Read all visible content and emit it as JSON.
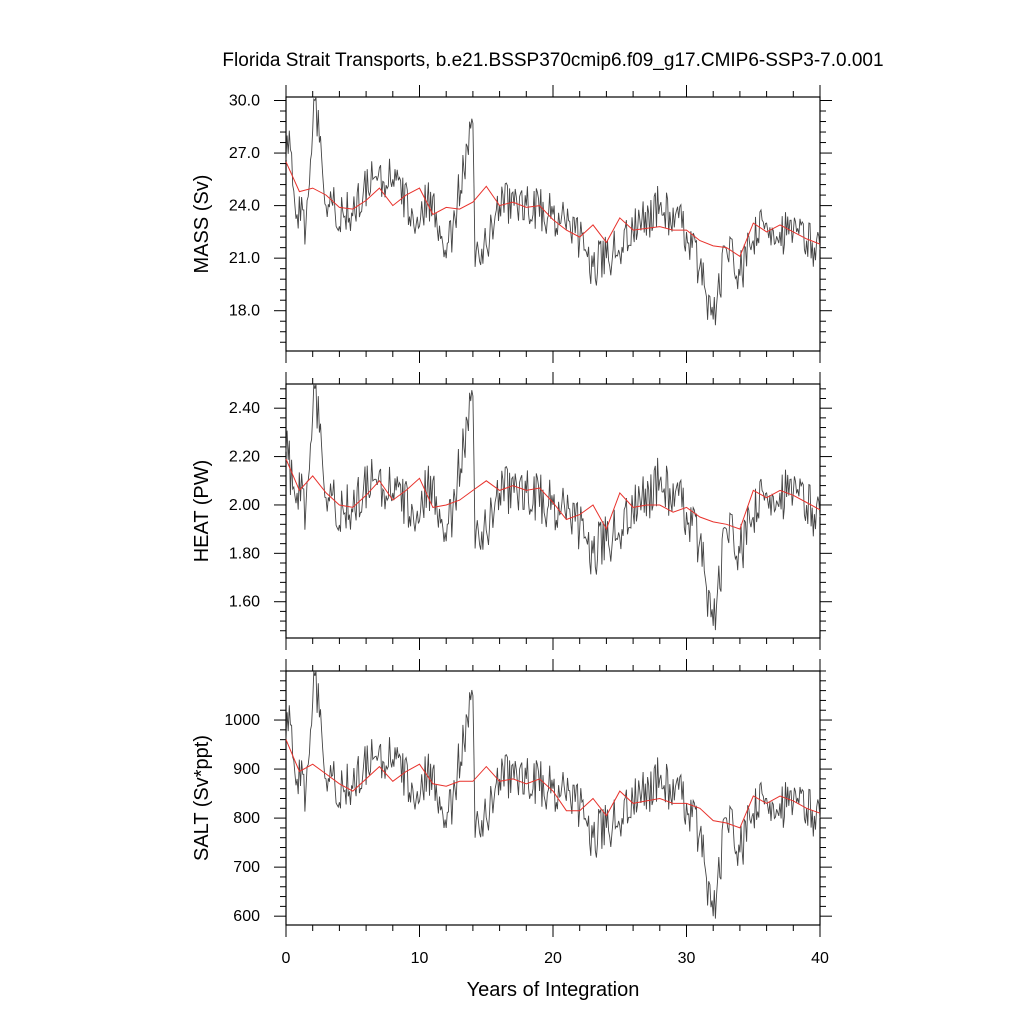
{
  "chart_data": [
    {
      "type": "line",
      "title": "Florida Strait Transports, b.e21.BSSP370cmip6.f09_g17.CMIP6-SSP3-7.0.001",
      "xlabel": "Years of Integration",
      "ylabel": "MASS (Sv)",
      "xlim": [
        0,
        40
      ],
      "ylim": [
        15.7,
        30.2
      ],
      "yticks": [
        "30.0",
        "27.0",
        "24.0",
        "21.0",
        "18.0"
      ],
      "ytick_values": [
        30,
        27,
        24,
        21,
        18
      ],
      "xticks": [
        0,
        10,
        20,
        30,
        40
      ],
      "grid": false,
      "series": [
        {
          "role": "monthly",
          "color": "#444444",
          "x_start": 0,
          "x_step": 0.0833333,
          "anchors": [
            [
              0,
              26.6
            ],
            [
              0.3,
              27.2
            ],
            [
              0.8,
              23.5
            ],
            [
              1.5,
              23
            ],
            [
              2.2,
              30
            ],
            [
              3,
              24
            ],
            [
              3.5,
              24
            ],
            [
              5,
              23.4
            ],
            [
              6.5,
              25.5
            ],
            [
              8,
              25.5
            ],
            [
              9.5,
              23.5
            ],
            [
              11,
              24.5
            ],
            [
              12,
              21
            ],
            [
              14,
              28.7
            ],
            [
              14.2,
              20.5
            ],
            [
              16,
              24
            ],
            [
              18,
              24
            ],
            [
              20,
              23.5
            ],
            [
              22,
              22
            ],
            [
              23,
              20.5
            ],
            [
              24,
              21
            ],
            [
              26,
              22.5
            ],
            [
              28,
              24
            ],
            [
              30,
              22.5
            ],
            [
              31,
              20.5
            ],
            [
              32,
              17.5
            ],
            [
              33,
              21.5
            ],
            [
              34,
              20
            ],
            [
              35,
              22
            ],
            [
              36,
              23
            ],
            [
              37,
              22.5
            ],
            [
              38,
              22.5
            ],
            [
              39,
              22
            ],
            [
              40,
              21.5
            ]
          ],
          "amplitude": 1.3
        },
        {
          "role": "annual_mean",
          "color": "#e8322c",
          "x": [
            0,
            1,
            2,
            3,
            4,
            5,
            6,
            7,
            8,
            9,
            10,
            11,
            12,
            13,
            14,
            15,
            16,
            17,
            18,
            19,
            20,
            21,
            22,
            23,
            24,
            25,
            26,
            27,
            28,
            29,
            30,
            31,
            32,
            33,
            34,
            35,
            36,
            37,
            38,
            39,
            40
          ],
          "values": [
            26.5,
            24.8,
            25.0,
            24.6,
            23.9,
            23.8,
            24.3,
            25.0,
            24.0,
            24.6,
            25.0,
            23.5,
            23.9,
            23.8,
            24.2,
            25.1,
            24.0,
            24.2,
            23.9,
            24.0,
            23.2,
            22.6,
            22.2,
            22.9,
            21.9,
            23.3,
            22.6,
            22.7,
            22.8,
            22.6,
            22.6,
            22.0,
            21.7,
            21.6,
            21.1,
            23.0,
            22.5,
            22.9,
            22.5,
            22.1,
            21.8
          ]
        }
      ]
    },
    {
      "type": "line",
      "xlabel": "Years of Integration",
      "ylabel": "HEAT (PW)",
      "xlim": [
        0,
        40
      ],
      "ylim": [
        1.45,
        2.5
      ],
      "yticks": [
        "2.40",
        "2.20",
        "2.00",
        "1.80",
        "1.60"
      ],
      "ytick_values": [
        2.4,
        2.2,
        2.0,
        1.8,
        1.6
      ],
      "xticks": [
        0,
        10,
        20,
        30,
        40
      ],
      "grid": false,
      "series": [
        {
          "role": "monthly",
          "color": "#444444",
          "x_start": 0,
          "x_step": 0.0833333,
          "anchors": [
            [
              0,
              2.22
            ],
            [
              0.8,
              2.05
            ],
            [
              1.5,
              2.0
            ],
            [
              2.2,
              2.48
            ],
            [
              3,
              2.03
            ],
            [
              5,
              1.97
            ],
            [
              6.5,
              2.1
            ],
            [
              8,
              2.05
            ],
            [
              9.5,
              1.98
            ],
            [
              11,
              2.1
            ],
            [
              12,
              1.85
            ],
            [
              14,
              2.45
            ],
            [
              14.2,
              1.82
            ],
            [
              16,
              2.05
            ],
            [
              18,
              2.05
            ],
            [
              20,
              2.0
            ],
            [
              22,
              1.9
            ],
            [
              23,
              1.8
            ],
            [
              24,
              1.85
            ],
            [
              26,
              1.97
            ],
            [
              28,
              2.1
            ],
            [
              30,
              1.97
            ],
            [
              31,
              1.85
            ],
            [
              32,
              1.5
            ],
            [
              33,
              1.9
            ],
            [
              34,
              1.8
            ],
            [
              35,
              1.95
            ],
            [
              36,
              2.05
            ],
            [
              37,
              2.05
            ],
            [
              38,
              2.05
            ],
            [
              39,
              2.0
            ],
            [
              40,
              1.95
            ]
          ],
          "amplitude": 0.11
        },
        {
          "role": "annual_mean",
          "color": "#e8322c",
          "x": [
            0,
            1,
            2,
            3,
            4,
            5,
            6,
            7,
            8,
            9,
            10,
            11,
            12,
            13,
            14,
            15,
            16,
            17,
            18,
            19,
            20,
            21,
            22,
            23,
            24,
            25,
            26,
            27,
            28,
            29,
            30,
            31,
            32,
            33,
            34,
            35,
            36,
            37,
            38,
            39,
            40
          ],
          "values": [
            2.19,
            2.06,
            2.12,
            2.05,
            2.0,
            1.99,
            2.04,
            2.1,
            2.02,
            2.06,
            2.11,
            1.99,
            2.0,
            2.02,
            2.06,
            2.1,
            2.06,
            2.08,
            2.06,
            2.07,
            2.01,
            1.94,
            1.96,
            2.0,
            1.9,
            2.05,
            1.99,
            2.0,
            2.0,
            1.97,
            1.99,
            1.95,
            1.93,
            1.92,
            1.9,
            2.06,
            2.03,
            2.06,
            2.04,
            2.01,
            1.98
          ]
        }
      ]
    },
    {
      "type": "line",
      "xlabel": "Years of Integration",
      "ylabel": "SALT (Sv*ppt)",
      "xlim": [
        0,
        40
      ],
      "ylim": [
        582,
        1100
      ],
      "yticks": [
        "1000",
        "900",
        "800",
        "700",
        "600"
      ],
      "ytick_values": [
        1000,
        900,
        800,
        700,
        600
      ],
      "xticks": [
        0,
        10,
        20,
        30,
        40
      ],
      "grid": false,
      "series": [
        {
          "role": "monthly",
          "color": "#444444",
          "x_start": 0,
          "x_step": 0.0833333,
          "anchors": [
            [
              0,
              960
            ],
            [
              0.3,
              990
            ],
            [
              0.8,
              880
            ],
            [
              1.5,
              860
            ],
            [
              2.2,
              1090
            ],
            [
              3,
              880
            ],
            [
              5,
              860
            ],
            [
              6.5,
              920
            ],
            [
              8,
              920
            ],
            [
              9.5,
              860
            ],
            [
              11,
              900
            ],
            [
              12,
              780
            ],
            [
              14,
              1050
            ],
            [
              14.2,
              760
            ],
            [
              16,
              880
            ],
            [
              18,
              880
            ],
            [
              20,
              860
            ],
            [
              22,
              820
            ],
            [
              23,
              760
            ],
            [
              24,
              780
            ],
            [
              26,
              830
            ],
            [
              28,
              880
            ],
            [
              30,
              830
            ],
            [
              31,
              770
            ],
            [
              32,
              600
            ],
            [
              33,
              800
            ],
            [
              34,
              730
            ],
            [
              35,
              810
            ],
            [
              36,
              840
            ],
            [
              37,
              830
            ],
            [
              38,
              830
            ],
            [
              39,
              820
            ],
            [
              40,
              800
            ]
          ],
          "amplitude": 50
        },
        {
          "role": "annual_mean",
          "color": "#e8322c",
          "x": [
            0,
            1,
            2,
            3,
            4,
            5,
            6,
            7,
            8,
            9,
            10,
            11,
            12,
            13,
            14,
            15,
            16,
            17,
            18,
            19,
            20,
            21,
            22,
            23,
            24,
            25,
            26,
            27,
            28,
            29,
            30,
            31,
            32,
            33,
            34,
            35,
            36,
            37,
            38,
            39,
            40
          ],
          "values": [
            960,
            895,
            910,
            890,
            870,
            855,
            880,
            905,
            875,
            895,
            910,
            870,
            865,
            875,
            875,
            905,
            875,
            880,
            870,
            880,
            855,
            815,
            815,
            840,
            805,
            855,
            830,
            835,
            840,
            830,
            830,
            820,
            795,
            790,
            780,
            845,
            830,
            845,
            835,
            820,
            810
          ]
        }
      ]
    }
  ],
  "axis_tick_labels": {
    "x": [
      "0",
      "10",
      "20",
      "30",
      "40"
    ]
  }
}
